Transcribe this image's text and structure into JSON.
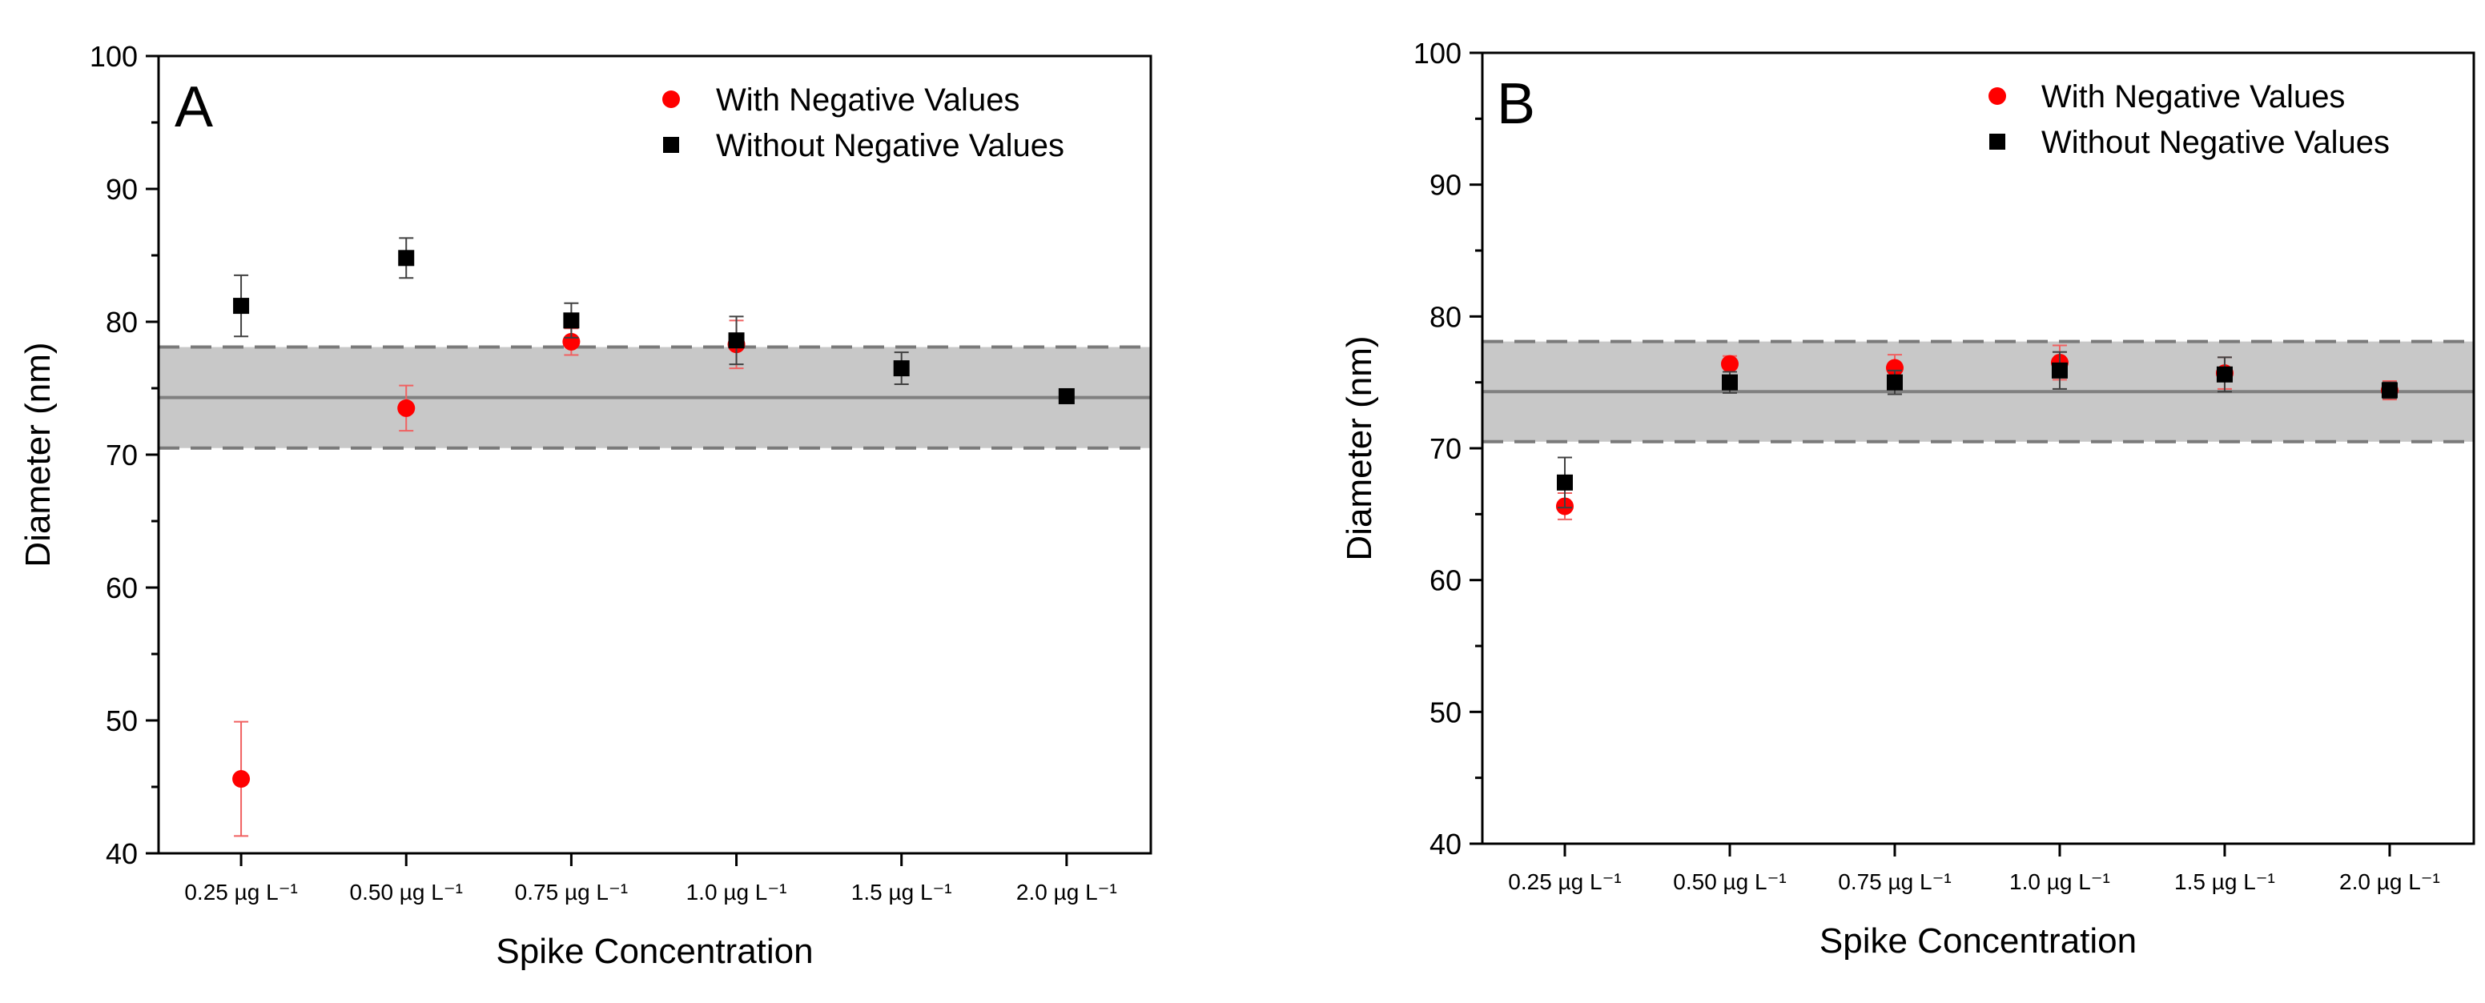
{
  "chart_data": [
    {
      "type": "scatter",
      "panel_label": "A",
      "xlabel": "Spike Concentration",
      "ylabel": "Diameter (nm)",
      "ylim": [
        40,
        100
      ],
      "yticks": [
        "40",
        "50",
        "60",
        "70",
        "80",
        "90",
        "100"
      ],
      "categories": [
        "0.25 µg L⁻¹",
        "0.50 µg L⁻¹",
        "0.75 µg L⁻¹",
        "1.0 µg L⁻¹",
        "1.5 µg L⁻¹",
        "2.0 µg L⁻¹"
      ],
      "reference": {
        "mean": 74.3,
        "lower": 70.5,
        "upper": 78.1
      },
      "legend_position": "top-right",
      "series": [
        {
          "name": "With Negative Values",
          "marker": "circle",
          "color": "#ff0000",
          "values": [
            45.6,
            73.5,
            78.5,
            78.3,
            null,
            null
          ],
          "errors": [
            4.3,
            1.7,
            1.0,
            1.8,
            null,
            null
          ]
        },
        {
          "name": "Without Negative Values",
          "marker": "square",
          "color": "#000000",
          "values": [
            81.2,
            84.8,
            80.1,
            78.6,
            76.5,
            74.4
          ],
          "errors": [
            2.3,
            1.5,
            1.3,
            1.8,
            1.2,
            null
          ]
        }
      ]
    },
    {
      "type": "scatter",
      "panel_label": "B",
      "xlabel": "Spike Concentration",
      "ylabel": "Diameter (nm)",
      "ylim": [
        40,
        100
      ],
      "yticks": [
        "40",
        "50",
        "60",
        "70",
        "80",
        "90",
        "100"
      ],
      "categories": [
        "0.25 µg L⁻¹",
        "0.50 µg L⁻¹",
        "0.75 µg L⁻¹",
        "1.0 µg L⁻¹",
        "1.5 µg L⁻¹",
        "2.0 µg L⁻¹"
      ],
      "reference": {
        "mean": 74.3,
        "lower": 70.5,
        "upper": 78.1
      },
      "legend_position": "top-right",
      "series": [
        {
          "name": "With Negative Values",
          "marker": "circle",
          "color": "#ff0000",
          "values": [
            65.6,
            76.4,
            76.1,
            76.5,
            75.7,
            74.4
          ],
          "errors": [
            1.0,
            0.6,
            1.0,
            1.3,
            1.2,
            0.7
          ]
        },
        {
          "name": "Without Negative Values",
          "marker": "square",
          "color": "#000000",
          "values": [
            67.4,
            75.0,
            75.0,
            75.9,
            75.6,
            74.4
          ],
          "errors": [
            1.9,
            0.8,
            0.9,
            1.4,
            1.3,
            0.6
          ]
        }
      ]
    }
  ]
}
